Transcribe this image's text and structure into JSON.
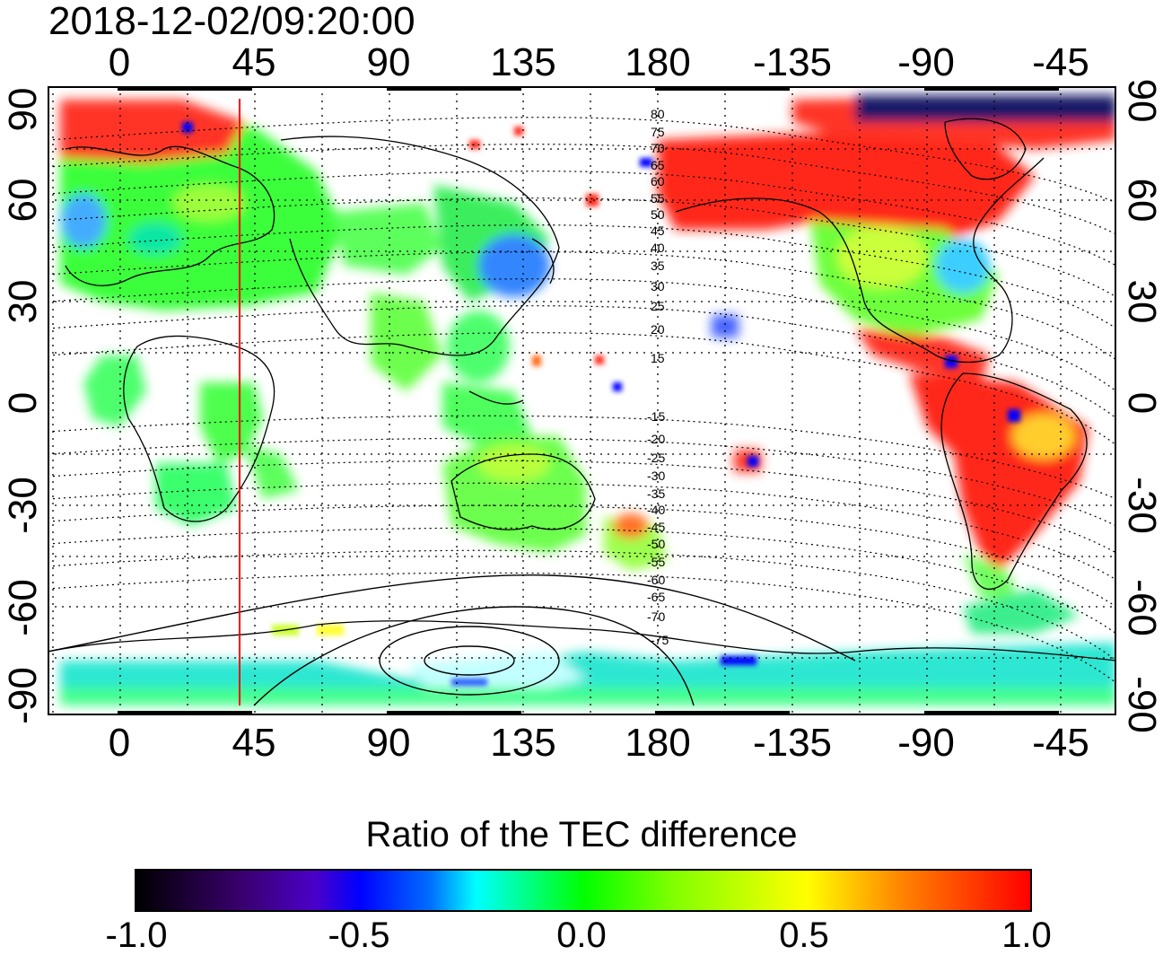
{
  "title": "2018-12-02/09:20:00",
  "top_lon_ticks": [
    "0",
    "45",
    "90",
    "135",
    "180",
    "-135",
    "-90",
    "-45"
  ],
  "bottom_lon_ticks": [
    "0",
    "45",
    "90",
    "135",
    "180",
    "-135",
    "-90",
    "-45"
  ],
  "left_lat_ticks": [
    "90",
    "60",
    "30",
    "0",
    "-30",
    "-60",
    "-90"
  ],
  "right_lat_ticks": [
    "90",
    "60",
    "30",
    "0",
    "-30",
    "-60",
    "-90"
  ],
  "contour_labels": [
    "80",
    "75",
    "70",
    "65",
    "60",
    "55",
    "50",
    "45",
    "40",
    "35",
    "30",
    "25",
    "20",
    "15",
    "-15",
    "-20",
    "-25",
    "-30",
    "-35",
    "-40",
    "-45",
    "-50",
    "-55",
    "-60",
    "-65",
    "-70",
    "-75"
  ],
  "colorbar": {
    "title": "Ratio of the TEC difference",
    "ticks": [
      "-1.0",
      "-0.5",
      "0.0",
      "0.5",
      "1.0"
    ],
    "min": -1.0,
    "max": 1.0
  },
  "colors": {
    "positive": "#ff0000",
    "neutral": "#00ff00",
    "negative": "#0000ff",
    "terminator": "#ff0000"
  }
}
